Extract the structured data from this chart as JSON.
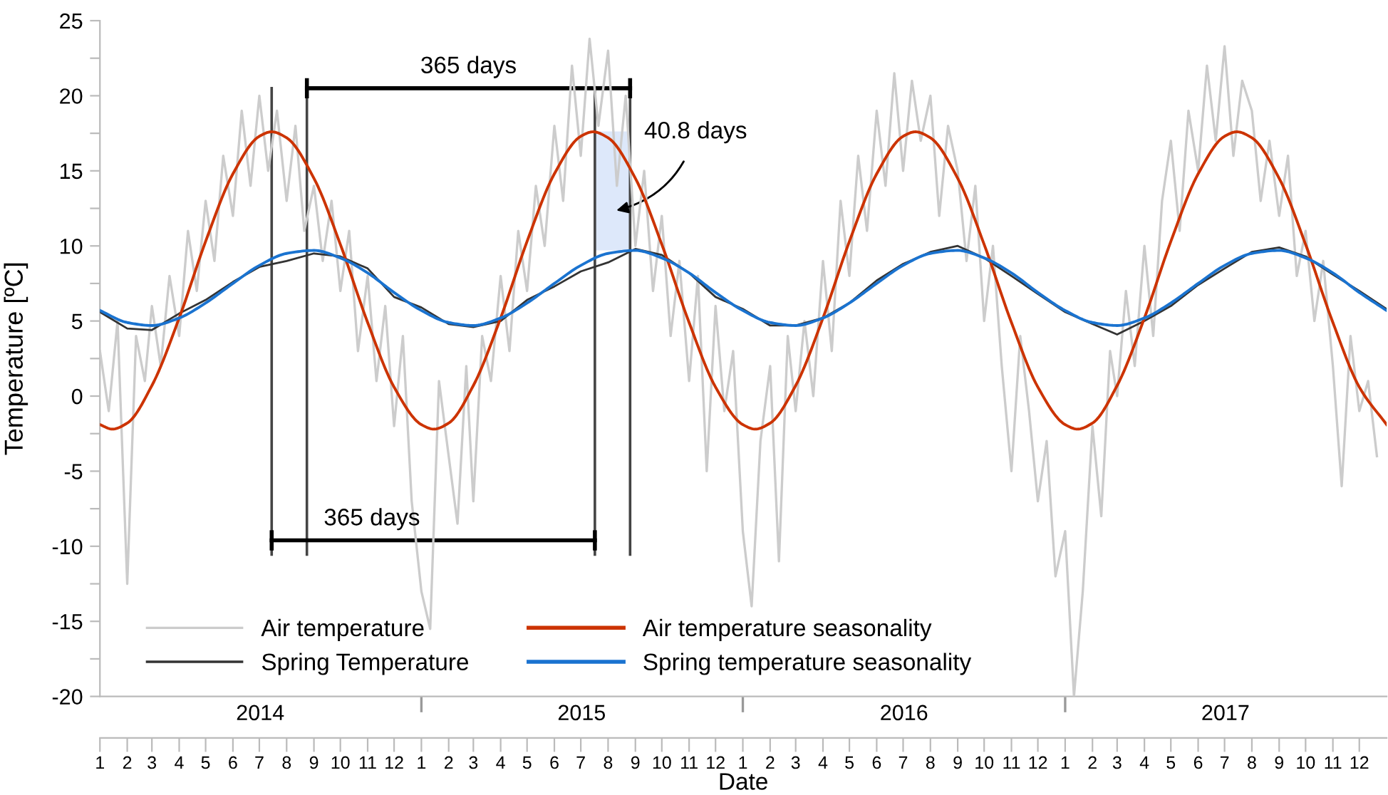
{
  "chart_data": {
    "type": "line",
    "xlabel": "Date",
    "ylabel": "Temperature [ºC]",
    "xlim": [
      "2014-01-01",
      "2018-01-01"
    ],
    "xticks": [
      {
        "value": "2014-01-01",
        "label": "1"
      },
      {
        "value": "2014-02-01",
        "label": "2"
      },
      {
        "value": "2014-03-01",
        "label": "3"
      },
      {
        "value": "2014-04-01",
        "label": "4"
      },
      {
        "value": "2014-05-01",
        "label": "5"
      },
      {
        "value": "2014-06-01",
        "label": "6"
      },
      {
        "value": "2014-07-01",
        "label": "7"
      },
      {
        "value": "2014-08-01",
        "label": "8"
      },
      {
        "value": "2014-09-01",
        "label": "9"
      },
      {
        "value": "2014-10-01",
        "label": "10"
      },
      {
        "value": "2014-11-01",
        "label": "11"
      },
      {
        "value": "2014-12-01",
        "label": "12"
      },
      {
        "value": "2015-01-01",
        "label": "1"
      },
      {
        "value": "2015-02-01",
        "label": "2"
      },
      {
        "value": "2015-03-01",
        "label": "3"
      },
      {
        "value": "2015-04-01",
        "label": "4"
      },
      {
        "value": "2015-05-01",
        "label": "5"
      },
      {
        "value": "2015-06-01",
        "label": "6"
      },
      {
        "value": "2015-07-01",
        "label": "7"
      },
      {
        "value": "2015-08-01",
        "label": "8"
      },
      {
        "value": "2015-09-01",
        "label": "9"
      },
      {
        "value": "2015-10-01",
        "label": "10"
      },
      {
        "value": "2015-11-01",
        "label": "11"
      },
      {
        "value": "2015-12-01",
        "label": "12"
      },
      {
        "value": "2016-01-01",
        "label": "1"
      },
      {
        "value": "2016-02-01",
        "label": "2"
      },
      {
        "value": "2016-03-01",
        "label": "3"
      },
      {
        "value": "2016-04-01",
        "label": "4"
      },
      {
        "value": "2016-05-01",
        "label": "5"
      },
      {
        "value": "2016-06-01",
        "label": "6"
      },
      {
        "value": "2016-07-01",
        "label": "7"
      },
      {
        "value": "2016-08-01",
        "label": "8"
      },
      {
        "value": "2016-09-01",
        "label": "9"
      },
      {
        "value": "2016-10-01",
        "label": "10"
      },
      {
        "value": "2016-11-01",
        "label": "11"
      },
      {
        "value": "2016-12-01",
        "label": "12"
      },
      {
        "value": "2017-01-01",
        "label": "1"
      },
      {
        "value": "2017-02-01",
        "label": "2"
      },
      {
        "value": "2017-03-01",
        "label": "3"
      },
      {
        "value": "2017-04-01",
        "label": "4"
      },
      {
        "value": "2017-05-01",
        "label": "5"
      },
      {
        "value": "2017-06-01",
        "label": "6"
      },
      {
        "value": "2017-07-01",
        "label": "7"
      },
      {
        "value": "2017-08-01",
        "label": "8"
      },
      {
        "value": "2017-09-01",
        "label": "9"
      },
      {
        "value": "2017-10-01",
        "label": "10"
      },
      {
        "value": "2017-11-01",
        "label": "11"
      },
      {
        "value": "2017-12-01",
        "label": "12"
      }
    ],
    "x2lim": [
      "2014-01-01",
      "2018-01-01"
    ],
    "x2ticks": [
      {
        "value": "2014-07-02",
        "label": "2014"
      },
      {
        "value": "2015-01-01",
        "label": null
      },
      {
        "value": "2015-07-02",
        "label": "2015"
      },
      {
        "value": "2016-01-01",
        "label": null
      },
      {
        "value": "2016-07-02",
        "label": "2016"
      },
      {
        "value": "2017-01-01",
        "label": null
      },
      {
        "value": "2017-07-02",
        "label": "2017"
      }
    ],
    "ylim": [
      -20,
      25
    ],
    "yticks": [
      -20,
      {
        "value": -17.5,
        "label": null
      },
      -15,
      {
        "value": -12.5,
        "label": null
      },
      -10,
      {
        "value": -7.5,
        "label": null
      },
      -5,
      {
        "value": -2.5,
        "label": null
      },
      0,
      {
        "value": 2.5,
        "label": null
      },
      5,
      {
        "value": 7.5,
        "label": null
      },
      10,
      {
        "value": 12.5,
        "label": null
      },
      15,
      {
        "value": 17.5,
        "label": null
      },
      20,
      {
        "value": 22.5,
        "label": null
      },
      25
    ],
    "grid": false,
    "legend": "bottom left",
    "marker": "none",
    "line_style": "solid",
    "series": [
      {
        "name": "Air temperature",
        "color": "#cccccc",
        "x": [
          "2014-01-01",
          "2014-01-11",
          "2014-01-21",
          "2014-02-01",
          "2014-02-11",
          "2014-02-21",
          "2014-03-01",
          "2014-03-11",
          "2014-03-21",
          "2014-04-01",
          "2014-04-11",
          "2014-04-21",
          "2014-05-01",
          "2014-05-11",
          "2014-05-21",
          "2014-06-01",
          "2014-06-11",
          "2014-06-21",
          "2014-07-01",
          "2014-07-11",
          "2014-07-21",
          "2014-08-01",
          "2014-08-11",
          "2014-08-21",
          "2014-09-01",
          "2014-09-11",
          "2014-09-21",
          "2014-10-01",
          "2014-10-11",
          "2014-10-21",
          "2014-11-01",
          "2014-11-11",
          "2014-11-21",
          "2014-12-01",
          "2014-12-11",
          "2014-12-21",
          "2015-01-01",
          "2015-01-11",
          "2015-01-21",
          "2015-02-01",
          "2015-02-11",
          "2015-02-21",
          "2015-03-01",
          "2015-03-11",
          "2015-03-21",
          "2015-04-01",
          "2015-04-11",
          "2015-04-21",
          "2015-05-01",
          "2015-05-11",
          "2015-05-21",
          "2015-06-01",
          "2015-06-11",
          "2015-06-21",
          "2015-07-01",
          "2015-07-11",
          "2015-07-21",
          "2015-08-01",
          "2015-08-11",
          "2015-08-21",
          "2015-09-01",
          "2015-09-11",
          "2015-09-21",
          "2015-10-01",
          "2015-10-11",
          "2015-10-21",
          "2015-11-01",
          "2015-11-11",
          "2015-11-21",
          "2015-12-01",
          "2015-12-11",
          "2015-12-21",
          "2016-01-01",
          "2016-01-11",
          "2016-01-21",
          "2016-02-01",
          "2016-02-11",
          "2016-02-21",
          "2016-03-01",
          "2016-03-11",
          "2016-03-21",
          "2016-04-01",
          "2016-04-11",
          "2016-04-21",
          "2016-05-01",
          "2016-05-11",
          "2016-05-21",
          "2016-06-01",
          "2016-06-11",
          "2016-06-21",
          "2016-07-01",
          "2016-07-11",
          "2016-07-21",
          "2016-08-01",
          "2016-08-11",
          "2016-08-21",
          "2016-09-01",
          "2016-09-11",
          "2016-09-21",
          "2016-10-01",
          "2016-10-11",
          "2016-10-21",
          "2016-11-01",
          "2016-11-11",
          "2016-11-21",
          "2016-12-01",
          "2016-12-11",
          "2016-12-21",
          "2017-01-01",
          "2017-01-11",
          "2017-01-21",
          "2017-02-01",
          "2017-02-11",
          "2017-02-21",
          "2017-03-01",
          "2017-03-11",
          "2017-03-21",
          "2017-04-01",
          "2017-04-11",
          "2017-04-21",
          "2017-05-01",
          "2017-05-11",
          "2017-05-21",
          "2017-06-01",
          "2017-06-11",
          "2017-06-21",
          "2017-07-01",
          "2017-07-11",
          "2017-07-21",
          "2017-08-01",
          "2017-08-11",
          "2017-08-21",
          "2017-09-01",
          "2017-09-11",
          "2017-09-21",
          "2017-10-01",
          "2017-10-11",
          "2017-10-21",
          "2017-11-01",
          "2017-11-11",
          "2017-11-21",
          "2017-12-01",
          "2017-12-11",
          "2017-12-21"
        ],
        "values": [
          3,
          -1,
          5,
          -12.5,
          4,
          1,
          6,
          2,
          8,
          4,
          11,
          7,
          13,
          9,
          16,
          12,
          19,
          14,
          20,
          15,
          19,
          13,
          18,
          11,
          14,
          9,
          13,
          7,
          11,
          3,
          8,
          1,
          6,
          -2,
          4,
          -7,
          -13,
          -15.5,
          1,
          -4,
          -8.5,
          2,
          -7,
          4,
          1,
          8,
          3,
          11,
          7,
          14,
          10,
          18,
          13,
          22,
          16,
          23.8,
          18,
          23,
          14,
          20,
          10,
          15,
          7,
          12,
          4,
          9,
          1,
          8,
          -5,
          6,
          -1,
          3,
          -9,
          -14,
          -3,
          2,
          -11,
          4,
          -1,
          5,
          0,
          9,
          3,
          13,
          8,
          16,
          11,
          19,
          14,
          21.5,
          15,
          21,
          17,
          20,
          12,
          18,
          15,
          9,
          14,
          5,
          10,
          2,
          -5,
          4,
          -1,
          -7,
          -3,
          -12,
          -9,
          -20,
          -13,
          -2,
          -8,
          3,
          0,
          7,
          2,
          10,
          4,
          13,
          17,
          11,
          19,
          15,
          22,
          17,
          23.3,
          16,
          21,
          19,
          13,
          17,
          12,
          16,
          8,
          11,
          5,
          9,
          2,
          -6,
          4,
          -1,
          1,
          -4
        ]
      },
      {
        "name": "Spring Temperature",
        "color": "#333333",
        "x": [
          "2014-01-01",
          "2014-02-01",
          "2014-03-01",
          "2014-04-01",
          "2014-05-01",
          "2014-06-01",
          "2014-07-01",
          "2014-08-01",
          "2014-09-01",
          "2014-10-01",
          "2014-11-01",
          "2014-12-01",
          "2015-01-01",
          "2015-02-01",
          "2015-03-01",
          "2015-04-01",
          "2015-05-01",
          "2015-06-01",
          "2015-07-01",
          "2015-08-01",
          "2015-09-01",
          "2015-10-01",
          "2015-11-01",
          "2015-12-01",
          "2016-01-01",
          "2016-02-01",
          "2016-03-01",
          "2016-04-01",
          "2016-05-01",
          "2016-06-01",
          "2016-07-01",
          "2016-08-01",
          "2016-09-01",
          "2016-10-01",
          "2016-11-01",
          "2016-12-01",
          "2017-01-01",
          "2017-02-01",
          "2017-03-01",
          "2017-04-01",
          "2017-05-01",
          "2017-06-01",
          "2017-07-01",
          "2017-08-01",
          "2017-09-01",
          "2017-10-01",
          "2017-11-01",
          "2017-12-01",
          "2018-01-01"
        ],
        "values": [
          5.6,
          4.5,
          4.4,
          5.5,
          6.4,
          7.6,
          8.6,
          9.0,
          9.5,
          9.3,
          8.5,
          6.6,
          5.9,
          4.8,
          4.6,
          5.0,
          6.4,
          7.3,
          8.3,
          8.9,
          9.8,
          9.4,
          8.2,
          6.6,
          5.8,
          4.7,
          4.7,
          5.2,
          6.2,
          7.7,
          8.8,
          9.6,
          10.0,
          9.2,
          8.0,
          6.8,
          5.6,
          4.8,
          4.1,
          5.0,
          6.0,
          7.4,
          8.5,
          9.6,
          9.9,
          9.3,
          8.1,
          7.0,
          5.8
        ]
      },
      {
        "name": "Air temperature seasonality",
        "color": "#cc3300",
        "x": [
          "2014-01-01",
          "2014-01-15",
          "2014-02-01",
          "2014-03-01",
          "2014-04-01",
          "2014-05-01",
          "2014-06-01",
          "2014-07-01",
          "2014-07-15",
          "2014-08-01",
          "2014-09-01",
          "2014-10-01",
          "2014-11-01",
          "2014-12-01",
          "2015-01-01",
          "2015-01-15",
          "2015-02-01",
          "2015-03-01",
          "2015-04-01",
          "2015-05-01",
          "2015-06-01",
          "2015-07-01",
          "2015-07-15",
          "2015-08-01",
          "2015-09-01",
          "2015-10-01",
          "2015-11-01",
          "2015-12-01",
          "2016-01-01",
          "2016-01-15",
          "2016-02-01",
          "2016-03-01",
          "2016-04-01",
          "2016-05-01",
          "2016-06-01",
          "2016-07-01",
          "2016-07-15",
          "2016-08-01",
          "2016-09-01",
          "2016-10-01",
          "2016-11-01",
          "2016-12-01",
          "2017-01-01",
          "2017-01-15",
          "2017-02-01",
          "2017-03-01",
          "2017-04-01",
          "2017-05-01",
          "2017-06-01",
          "2017-07-01",
          "2017-07-15",
          "2017-08-01",
          "2017-09-01",
          "2017-10-01",
          "2017-11-01",
          "2017-12-01",
          "2018-01-01"
        ],
        "values": [
          -1.9,
          -2.2,
          -1.8,
          0.7,
          5.2,
          10.3,
          14.8,
          17.3,
          17.6,
          17.2,
          14.5,
          10.1,
          4.9,
          0.6,
          -1.9,
          -2.2,
          -1.8,
          0.7,
          5.2,
          10.3,
          14.8,
          17.3,
          17.6,
          17.2,
          14.5,
          10.1,
          4.9,
          0.6,
          -1.9,
          -2.2,
          -1.8,
          0.7,
          5.2,
          10.3,
          14.8,
          17.3,
          17.6,
          17.2,
          14.5,
          10.1,
          4.9,
          0.6,
          -1.9,
          -2.2,
          -1.8,
          0.7,
          5.2,
          10.3,
          14.8,
          17.3,
          17.6,
          17.2,
          14.5,
          10.1,
          4.9,
          0.6,
          -1.9
        ]
      },
      {
        "name": "Spring temperature seasonality",
        "color": "#1a73d0",
        "x": [
          "2014-01-01",
          "2014-02-01",
          "2014-03-01",
          "2014-04-01",
          "2014-05-01",
          "2014-06-01",
          "2014-07-01",
          "2014-08-01",
          "2014-09-01",
          "2014-10-01",
          "2014-11-01",
          "2014-12-01",
          "2015-01-01",
          "2015-02-01",
          "2015-03-01",
          "2015-04-01",
          "2015-05-01",
          "2015-06-01",
          "2015-07-01",
          "2015-08-01",
          "2015-09-01",
          "2015-10-01",
          "2015-11-01",
          "2015-12-01",
          "2016-01-01",
          "2016-02-01",
          "2016-03-01",
          "2016-04-01",
          "2016-05-01",
          "2016-06-01",
          "2016-07-01",
          "2016-08-01",
          "2016-09-01",
          "2016-10-01",
          "2016-11-01",
          "2016-12-01",
          "2017-01-01",
          "2017-02-01",
          "2017-03-01",
          "2017-04-01",
          "2017-05-01",
          "2017-06-01",
          "2017-07-01",
          "2017-08-01",
          "2017-09-01",
          "2017-10-01",
          "2017-11-01",
          "2017-12-01",
          "2018-01-01"
        ],
        "values": [
          5.7,
          4.9,
          4.7,
          5.2,
          6.2,
          7.5,
          8.7,
          9.5,
          9.7,
          9.2,
          8.2,
          6.9,
          5.7,
          4.9,
          4.7,
          5.2,
          6.2,
          7.5,
          8.7,
          9.5,
          9.7,
          9.2,
          8.2,
          6.9,
          5.7,
          4.9,
          4.7,
          5.2,
          6.2,
          7.5,
          8.7,
          9.5,
          9.7,
          9.2,
          8.2,
          6.9,
          5.7,
          4.9,
          4.7,
          5.2,
          6.2,
          7.5,
          8.7,
          9.5,
          9.7,
          9.2,
          8.2,
          6.9,
          5.7
        ]
      }
    ],
    "ref_lines": [
      {
        "axis": "x",
        "value": "2014-08-24",
        "color": "#444444"
      },
      {
        "axis": "x",
        "value": "2014-07-15",
        "color": "#444444"
      },
      {
        "axis": "x",
        "value": "2015-08-26",
        "color": "#444444"
      },
      {
        "axis": "x",
        "value": "2015-07-17",
        "color": "#444444"
      }
    ],
    "bands": [
      {
        "axis": "x",
        "from": "2015-07-17",
        "to": "2015-08-26",
        "label": "40.8 days",
        "color": "#dde8fa"
      }
    ],
    "annotations": [
      "365 days",
      "365 days"
    ]
  }
}
